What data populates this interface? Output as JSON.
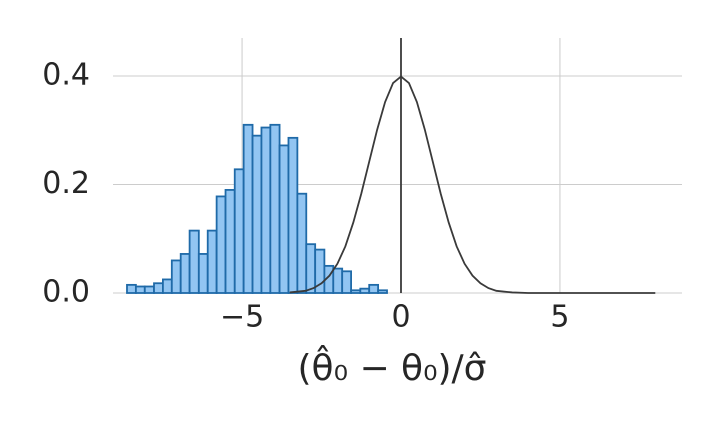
{
  "chart_data": {
    "type": "histogram",
    "xlabel": "(θ̂₀ − θ₀)/σ̂",
    "bins": [
      -8.62,
      -8.34,
      -8.06,
      -7.77,
      -7.49,
      -7.21,
      -6.93,
      -6.65,
      -6.36,
      -6.08,
      -5.8,
      -5.52,
      -5.23,
      -4.95,
      -4.67,
      -4.39,
      -4.11,
      -3.82,
      -3.54,
      -3.26,
      -2.98,
      -2.7,
      -2.41,
      -2.13,
      -1.85,
      -1.57,
      -1.28,
      -1.0,
      -0.72,
      -0.44
    ],
    "values": [
      0.015,
      0.012,
      0.012,
      0.018,
      0.025,
      0.06,
      0.072,
      0.115,
      0.072,
      0.115,
      0.178,
      0.19,
      0.228,
      0.31,
      0.29,
      0.305,
      0.31,
      0.272,
      0.286,
      0.183,
      0.09,
      0.08,
      0.05,
      0.045,
      0.04,
      0.005,
      0.008,
      0.015,
      0.005
    ],
    "color": "#92c5f2",
    "edge_color": "#1f6aa8",
    "line": {
      "x": [
        -3.5,
        -3,
        -2.75,
        -2.5,
        -2.25,
        -2,
        -1.75,
        -1.5,
        -1.25,
        -1,
        -0.75,
        -0.5,
        -0.25,
        0,
        0.25,
        0.5,
        0.75,
        1,
        1.25,
        1.5,
        1.75,
        2,
        2.25,
        2.5,
        2.75,
        3,
        3.5,
        4,
        6,
        8
      ],
      "values": [
        0.001,
        0.004,
        0.009,
        0.018,
        0.032,
        0.054,
        0.086,
        0.13,
        0.183,
        0.242,
        0.301,
        0.352,
        0.387,
        0.399,
        0.387,
        0.352,
        0.301,
        0.242,
        0.183,
        0.13,
        0.086,
        0.054,
        0.032,
        0.018,
        0.009,
        0.004,
        0.001,
        0,
        0,
        0
      ],
      "color": "#3a3a3a"
    },
    "vline": {
      "x": 0,
      "color": "#3a3a3a"
    },
    "xlim": [
      -9.06,
      8.84
    ],
    "ylim": [
      0,
      0.47
    ],
    "xticks": [
      {
        "value": -5,
        "label": "−5"
      },
      0,
      5
    ],
    "yticks": [
      {
        "value": 0,
        "label": "0.0"
      },
      0.2,
      0.4
    ],
    "grid": true
  }
}
